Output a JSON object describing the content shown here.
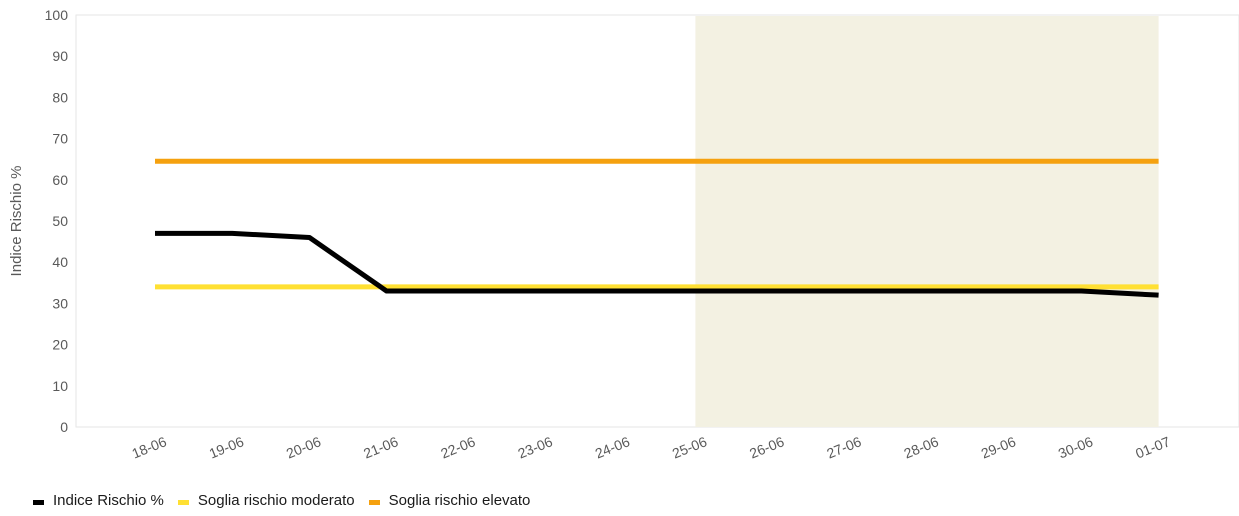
{
  "chart_data": {
    "type": "line",
    "ylabel": "Indice Rischio %",
    "xlabel": "",
    "ylim": [
      0,
      100
    ],
    "yticks": [
      0,
      10,
      20,
      30,
      40,
      50,
      60,
      70,
      80,
      90,
      100
    ],
    "categories": [
      "18-06",
      "19-06",
      "20-06",
      "21-06",
      "22-06",
      "23-06",
      "24-06",
      "25-06",
      "26-06",
      "27-06",
      "28-06",
      "29-06",
      "30-06",
      "01-07"
    ],
    "highlight_range": {
      "from": "25-06",
      "to": "01-07",
      "color": "#f3f1e2"
    },
    "grid": false,
    "legend_position": "bottom-left",
    "series": [
      {
        "name": "Indice Rischio %",
        "color": "#000000",
        "values": [
          47,
          47,
          46,
          33,
          33,
          33,
          33,
          33,
          33,
          33,
          33,
          33,
          33,
          32
        ]
      },
      {
        "name": "Soglia rischio moderato",
        "color": "#ffe033",
        "values": [
          34,
          34,
          34,
          34,
          34,
          34,
          34,
          34,
          34,
          34,
          34,
          34,
          34,
          34
        ]
      },
      {
        "name": "Soglia rischio elevato",
        "color": "#f5a10f",
        "values": [
          64.5,
          64.5,
          64.5,
          64.5,
          64.5,
          64.5,
          64.5,
          64.5,
          64.5,
          64.5,
          64.5,
          64.5,
          64.5,
          64.5
        ]
      }
    ]
  }
}
